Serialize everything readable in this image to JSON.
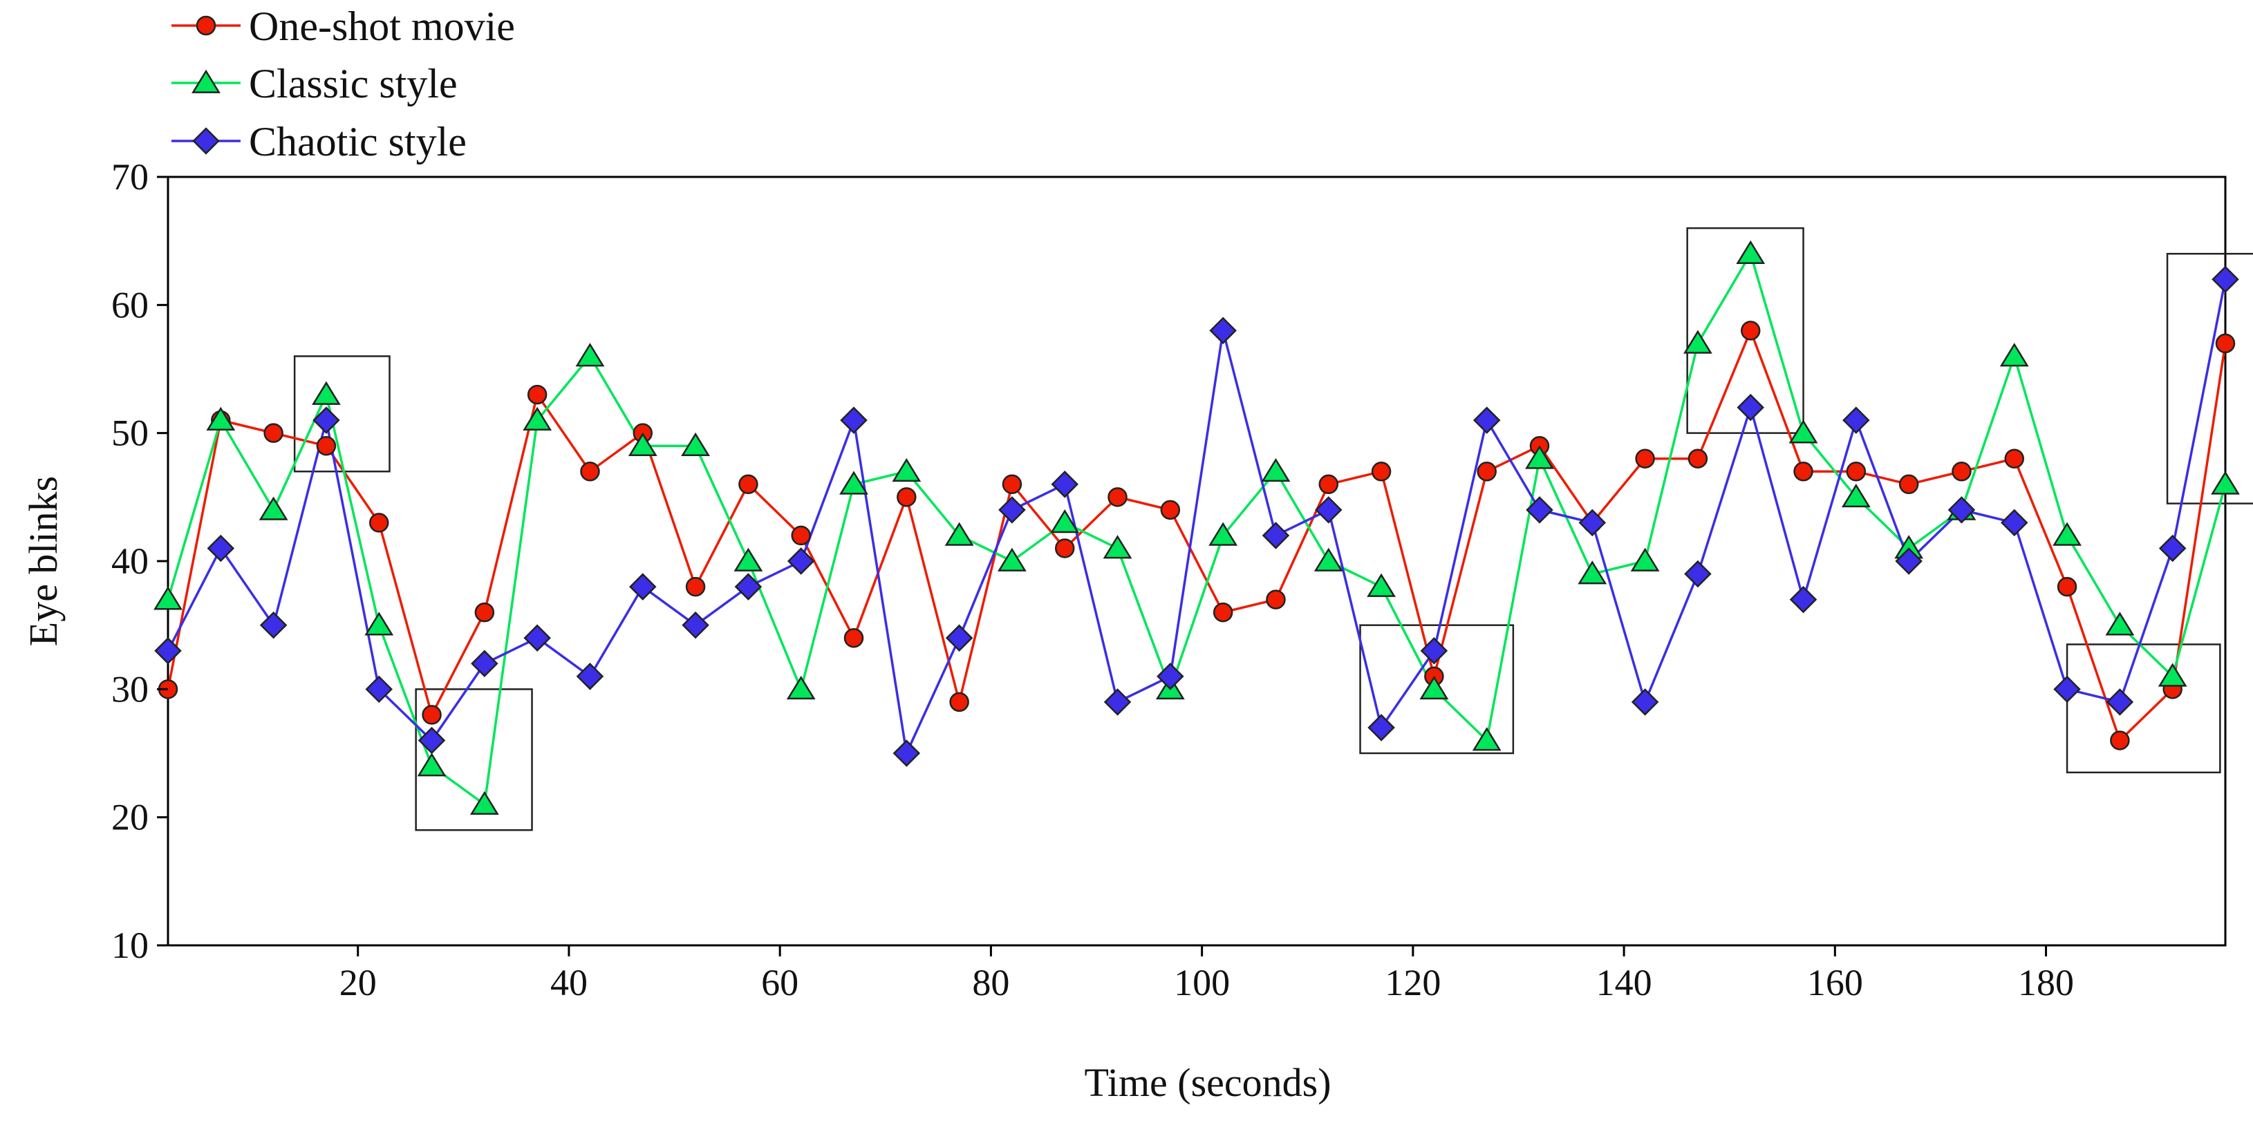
{
  "chart_data": {
    "type": "line",
    "title": "",
    "xlabel": "Time (seconds)",
    "ylabel": "Eye blinks",
    "xlim": [
      2,
      197
    ],
    "ylim": [
      10,
      70
    ],
    "xticks": [
      20,
      40,
      60,
      80,
      100,
      120,
      140,
      160,
      180
    ],
    "yticks": [
      10,
      20,
      30,
      40,
      50,
      60,
      70
    ],
    "grid": false,
    "legend_position": "top-left outside",
    "x": [
      2,
      7,
      12,
      17,
      22,
      27,
      32,
      37,
      42,
      47,
      52,
      57,
      62,
      67,
      72,
      77,
      82,
      87,
      92,
      97,
      102,
      107,
      112,
      117,
      122,
      127,
      132,
      137,
      142,
      147,
      152,
      157,
      162,
      167,
      172,
      177,
      182,
      187,
      192,
      197
    ],
    "series": [
      {
        "name": "One-shot movie",
        "color": "#ee1c00",
        "marker": "circle",
        "values": [
          30,
          51,
          50,
          49,
          43,
          28,
          36,
          53,
          47,
          50,
          38,
          46,
          42,
          34,
          45,
          29,
          46,
          41,
          45,
          44,
          36,
          37,
          46,
          47,
          31,
          47,
          49,
          43,
          48,
          48,
          58,
          47,
          47,
          46,
          47,
          48,
          38,
          26,
          30,
          57
        ]
      },
      {
        "name": "Classic style",
        "color": "#00e65a",
        "marker": "triangle",
        "values": [
          37,
          51,
          44,
          53,
          35,
          24,
          21,
          51,
          56,
          49,
          49,
          40,
          30,
          46,
          47,
          42,
          40,
          43,
          41,
          30,
          42,
          47,
          40,
          38,
          30,
          26,
          48,
          39,
          40,
          57,
          64,
          50,
          45,
          41,
          44,
          56,
          42,
          35,
          31,
          46
        ]
      },
      {
        "name": "Chaotic style",
        "color": "#3b2ee6",
        "marker": "diamond",
        "values": [
          33,
          41,
          35,
          51,
          30,
          26,
          32,
          34,
          31,
          38,
          35,
          38,
          40,
          51,
          25,
          34,
          44,
          46,
          29,
          31,
          58,
          42,
          44,
          27,
          33,
          51,
          44,
          43,
          29,
          39,
          52,
          37,
          51,
          40,
          44,
          43,
          30,
          29,
          41,
          62
        ]
      }
    ],
    "annotations": [
      {
        "type": "highlight-box",
        "x_range": [
          14,
          23
        ],
        "y_range": [
          47,
          56
        ]
      },
      {
        "type": "highlight-box",
        "x_range": [
          25.5,
          36.5
        ],
        "y_range": [
          19,
          30
        ]
      },
      {
        "type": "highlight-box",
        "x_range": [
          115,
          129.5
        ],
        "y_range": [
          25,
          35
        ]
      },
      {
        "type": "highlight-box",
        "x_range": [
          146,
          157
        ],
        "y_range": [
          50,
          66
        ]
      },
      {
        "type": "highlight-box",
        "x_range": [
          182,
          196.5
        ],
        "y_range": [
          23.5,
          33.5
        ]
      },
      {
        "type": "highlight-box",
        "x_range": [
          191.5,
          200
        ],
        "y_range": [
          44.5,
          64
        ]
      }
    ]
  }
}
